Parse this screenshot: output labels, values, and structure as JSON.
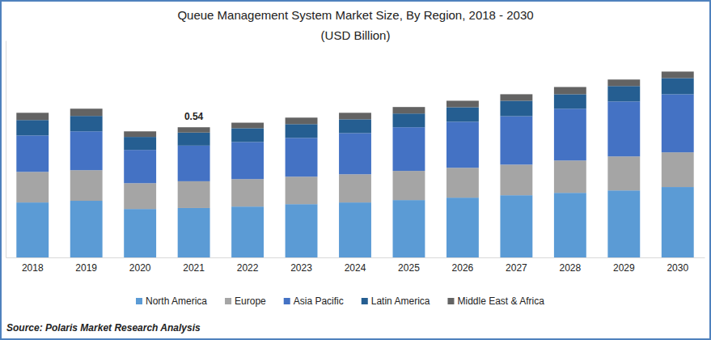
{
  "chart_data": {
    "type": "bar",
    "title": "Queue Management System Market Size, By Region, 2018 - 2030",
    "subtitle": "(USD Billion)",
    "source": "Source: Polaris Market Research Analysis",
    "stacked": true,
    "grid": false,
    "legend": "bottom",
    "tick_labels": "x",
    "categories": [
      "2018",
      "2019",
      "2020",
      "2021",
      "2022",
      "2023",
      "2024",
      "2025",
      "2026",
      "2027",
      "2028",
      "2029",
      "2030"
    ],
    "ylim": [
      0,
      0.9
    ],
    "series": [
      {
        "name": "North America",
        "color": "#5b9bd5",
        "values": [
          0.228,
          0.235,
          0.201,
          0.205,
          0.211,
          0.221,
          0.228,
          0.238,
          0.248,
          0.258,
          0.268,
          0.278,
          0.292
        ]
      },
      {
        "name": "Europe",
        "color": "#a5a5a5",
        "values": [
          0.127,
          0.127,
          0.107,
          0.111,
          0.114,
          0.114,
          0.117,
          0.121,
          0.124,
          0.127,
          0.134,
          0.141,
          0.144
        ]
      },
      {
        "name": "Asia Pacific",
        "color": "#4472c4",
        "values": [
          0.151,
          0.161,
          0.138,
          0.148,
          0.154,
          0.161,
          0.171,
          0.181,
          0.191,
          0.201,
          0.215,
          0.228,
          0.241
        ]
      },
      {
        "name": "Latin America",
        "color": "#255e91",
        "values": [
          0.064,
          0.064,
          0.054,
          0.054,
          0.057,
          0.057,
          0.057,
          0.057,
          0.06,
          0.064,
          0.06,
          0.064,
          0.067
        ]
      },
      {
        "name": "Middle East & Africa",
        "color": "#636363",
        "values": [
          0.03,
          0.03,
          0.023,
          0.022,
          0.023,
          0.027,
          0.027,
          0.027,
          0.027,
          0.027,
          0.03,
          0.027,
          0.027
        ]
      }
    ],
    "annotations": [
      {
        "label": "0.54",
        "value": 0.54,
        "category": "2021"
      }
    ]
  }
}
